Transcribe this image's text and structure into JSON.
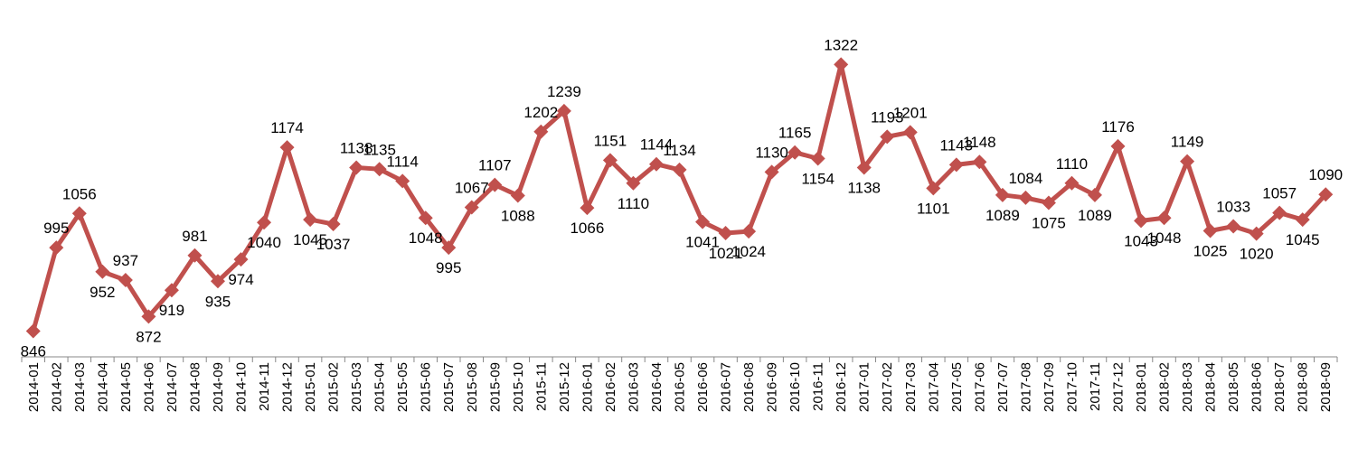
{
  "chart_data": {
    "type": "line",
    "color": "#c0504d",
    "categories": [
      "2014-01",
      "2014-02",
      "2014-03",
      "2014-04",
      "2014-05",
      "2014-06",
      "2014-07",
      "2014-08",
      "2014-09",
      "2014-10",
      "2014-11",
      "2014-12",
      "2015-01",
      "2015-02",
      "2015-03",
      "2015-04",
      "2015-05",
      "2015-06",
      "2015-07",
      "2015-08",
      "2015-09",
      "2015-10",
      "2015-11",
      "2015-12",
      "2016-01",
      "2016-02",
      "2016-03",
      "2016-04",
      "2016-05",
      "2016-06",
      "2016-07",
      "2016-08",
      "2016-09",
      "2016-10",
      "2016-11",
      "2016-12",
      "2017-01",
      "2017-02",
      "2017-03",
      "2017-04",
      "2017-05",
      "2017-06",
      "2017-07",
      "2017-08",
      "2017-09",
      "2017-10",
      "2017-11",
      "2017-12",
      "2018-01",
      "2018-02",
      "2018-03",
      "2018-04",
      "2018-05",
      "2018-06",
      "2018-07",
      "2018-08",
      "2018-09"
    ],
    "values": [
      846,
      995,
      1056,
      952,
      937,
      872,
      919,
      981,
      935,
      974,
      1040,
      1174,
      1045,
      1037,
      1138,
      1135,
      1114,
      1048,
      995,
      1067,
      1107,
      1088,
      1202,
      1239,
      1066,
      1151,
      1110,
      1144,
      1134,
      1041,
      1021,
      1024,
      1130,
      1165,
      1154,
      1322,
      1138,
      1193,
      1201,
      1101,
      1143,
      1148,
      1089,
      1084,
      1075,
      1110,
      1089,
      1176,
      1043,
      1048,
      1149,
      1025,
      1033,
      1020,
      1057,
      1045,
      1090
    ],
    "ylim": [
      800,
      1400
    ]
  }
}
